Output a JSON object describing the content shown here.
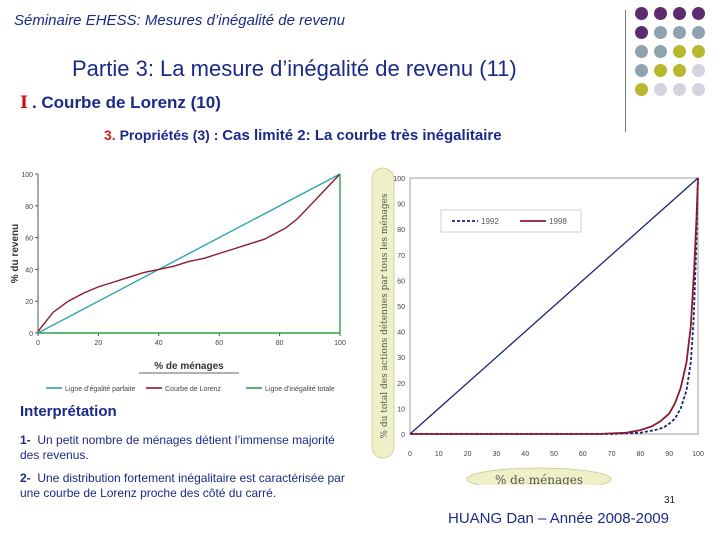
{
  "header": {
    "seminar": "Séminaire EHESS: Mesures d’inégalité de revenu",
    "part_title": "Partie 3:  La mesure d’inégalité de revenu (11)",
    "section_roman": "I",
    "section_title": ". Courbe de Lorenz (10)",
    "subtitle_num": "3.",
    "subtitle_mid": "Propriétés (3) :",
    "subtitle_rest": "Cas limité 2: La courbe très inégalitaire"
  },
  "decor": {
    "dot_colors": [
      "#5b2c6f",
      "#5b2c6f",
      "#5b2c6f",
      "#5b2c6f",
      "#8fa3ae",
      "#8fa3ae",
      "#b8b82e",
      "#b8b82e",
      "#d4d4e0",
      "#d4d4e0"
    ]
  },
  "chart_data": [
    {
      "type": "line",
      "xlabel": "% de ménages",
      "ylabel": "% du revenu",
      "xlim": [
        0,
        100
      ],
      "ylim": [
        0,
        100
      ],
      "x_ticks": [
        "0",
        "20",
        "40",
        "60",
        "80",
        "100"
      ],
      "y_ticks": [
        "0",
        "20",
        "40",
        "60",
        "80",
        "100"
      ],
      "grid": false,
      "legend_position": "bottom",
      "series": [
        {
          "name": "Ligne d’égalité parfaite",
          "color": "#2aa3b8",
          "points": [
            [
              0,
              0
            ],
            [
              100,
              100
            ]
          ]
        },
        {
          "name": "Courbe de Lorenz",
          "color": "#8b1a2e",
          "points": [
            [
              0,
              1
            ],
            [
              5,
              13
            ],
            [
              10,
              20
            ],
            [
              15,
              25
            ],
            [
              20,
              29
            ],
            [
              25,
              32
            ],
            [
              30,
              35
            ],
            [
              35,
              38
            ],
            [
              40,
              40
            ],
            [
              45,
              42
            ],
            [
              50,
              45
            ],
            [
              55,
              47
            ],
            [
              60,
              50
            ],
            [
              65,
              53
            ],
            [
              70,
              56
            ],
            [
              75,
              59
            ],
            [
              78,
              62
            ],
            [
              82,
              66
            ],
            [
              86,
              72
            ],
            [
              90,
              80
            ],
            [
              95,
              90
            ],
            [
              100,
              100
            ]
          ]
        },
        {
          "name": "Ligne d’inégalité totale",
          "color": "#2aa34a",
          "points": [
            [
              0,
              0
            ],
            [
              100,
              0
            ],
            [
              100,
              100
            ]
          ]
        }
      ]
    },
    {
      "type": "line",
      "xlabel": "% de ménages",
      "ylabel": "% du total des actions détenues par tous les ménages",
      "xlim": [
        0,
        100
      ],
      "ylim": [
        0,
        100
      ],
      "x_ticks": [
        "0",
        "10",
        "20",
        "30",
        "40",
        "50",
        "60",
        "70",
        "80",
        "90",
        "100"
      ],
      "y_ticks": [
        "0",
        "10",
        "20",
        "30",
        "40",
        "50",
        "60",
        "70",
        "80",
        "90",
        "100"
      ],
      "grid": false,
      "legend_position": "top-right",
      "series": [
        {
          "name": "1992",
          "color": "#1a237e",
          "dashed": true,
          "points": [
            [
              0,
              0
            ],
            [
              70,
              0
            ],
            [
              80,
              0.5
            ],
            [
              85,
              1.5
            ],
            [
              88,
              2.5
            ],
            [
              90,
              4
            ],
            [
              92,
              6
            ],
            [
              94,
              10
            ],
            [
              96,
              17
            ],
            [
              97.5,
              28
            ],
            [
              98.5,
              45
            ],
            [
              99.3,
              70
            ],
            [
              100,
              100
            ]
          ]
        },
        {
          "name": "1998",
          "color": "#8b1a2e",
          "dashed": false,
          "points": [
            [
              0,
              0
            ],
            [
              65,
              0
            ],
            [
              75,
              0.5
            ],
            [
              80,
              1.5
            ],
            [
              84,
              3
            ],
            [
              87,
              5
            ],
            [
              90,
              8
            ],
            [
              92,
              12
            ],
            [
              94,
              18
            ],
            [
              96,
              28
            ],
            [
              97.5,
              42
            ],
            [
              98.7,
              65
            ],
            [
              99.5,
              85
            ],
            [
              100,
              100
            ]
          ]
        },
        {
          "name": "",
          "color": "#1a237e",
          "dashed": false,
          "points": [
            [
              0,
              0
            ],
            [
              100,
              100
            ]
          ]
        }
      ]
    }
  ],
  "interpretation": {
    "title": "Interprétation",
    "item1_num": "1-",
    "item1_text": "Un petit nombre de ménages détient l’immense majorité des revenus.",
    "item2_num": "2-",
    "item2_text": "Une distribution fortement inégalitaire est caractérisée par une courbe de Lorenz proche des côté du carré."
  },
  "footer": {
    "page_number": "31",
    "author": "HUANG Dan – Année 2008-2009"
  }
}
